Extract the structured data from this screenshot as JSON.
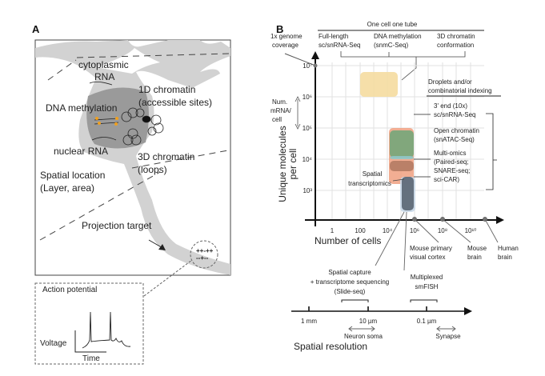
{
  "panel_a": {
    "label": "A",
    "cytoplasmic_rna": [
      "cytoplasmic",
      "RNA"
    ],
    "chromatin_1d": [
      "1D chromatin",
      "(accessible sites)"
    ],
    "dna_methylation": "DNA methylation",
    "nuclear_rna": "nuclear RNA",
    "chromatin_3d": [
      "3D chromatin",
      "(loops)"
    ],
    "spatial_location": [
      "Spatial location",
      "(Layer, area)"
    ],
    "projection_target": "Projection target",
    "charges": [
      "++-++",
      "--+--"
    ],
    "action_potential": {
      "title": "Action potential",
      "y_label": "Voltage",
      "x_label": "Time"
    },
    "colors": {
      "neuron": "#d2d2d2",
      "nucleus": "#9a9a9a",
      "methylation": "#f0a020"
    }
  },
  "panel_b": {
    "label": "B",
    "one_cell_one_tube": "One cell one tube",
    "genome_coverage": [
      "1x genome",
      "coverage"
    ],
    "top_methods": [
      [
        "Full-length",
        "sc/snRNA-Seq"
      ],
      [
        "DNA methylation",
        "(snmC-Seq)"
      ],
      [
        "3D chromatin",
        "conformation"
      ]
    ],
    "droplets": [
      "Droplets and/or",
      "combinatorial indexing"
    ],
    "right_methods": [
      [
        "3' end (10x)",
        "sc/snRNA-Seq"
      ],
      [
        "Open chromatin",
        "(snATAC-Seq)"
      ],
      [
        "Multi-omics",
        "(Paired-seq;",
        "SNARE-seq;",
        "sci-CAR)"
      ]
    ],
    "spatial_transcriptomics": [
      "Spatial",
      "transcriptomics"
    ],
    "num_mrna": [
      "Num.",
      "mRNA/",
      "cell"
    ],
    "y_axis_label": [
      "Unique molecules",
      "per cell"
    ],
    "y_ticks": [
      "10⁷",
      "10⁶",
      "10⁵",
      "10⁴",
      "10³"
    ],
    "x_ticks": [
      "1",
      "100",
      "10⁴",
      "10⁶",
      "10⁸",
      "10¹⁰"
    ],
    "x_axis_label": "Number of cells",
    "reference_points": [
      [
        "Mouse primary",
        "visual cortex"
      ],
      [
        "Mouse",
        "brain"
      ],
      [
        "Human",
        "brain"
      ]
    ],
    "spatial_capture": [
      "Spatial capture",
      "+ transcriptome sequencing",
      "(Slide-seq)"
    ],
    "smfish": [
      "Multiplexed",
      "smFISH"
    ],
    "resolution_ticks": [
      "1 mm",
      "10 µm",
      "0.1 µm"
    ],
    "neuron_soma": "Neuron soma",
    "synapse": "Synapse",
    "resolution_label": "Spatial resolution",
    "colors": {
      "full_length": "#f5dca0",
      "rna_10x": "#7aa67a",
      "atac": "#8fc8c8",
      "multiomics": "#f0a080",
      "multiomics_dark": "#b07860",
      "spatial": "#5f6a78",
      "spatial_halo": "#c8d8e8",
      "grid": "#e2e2e2"
    }
  }
}
